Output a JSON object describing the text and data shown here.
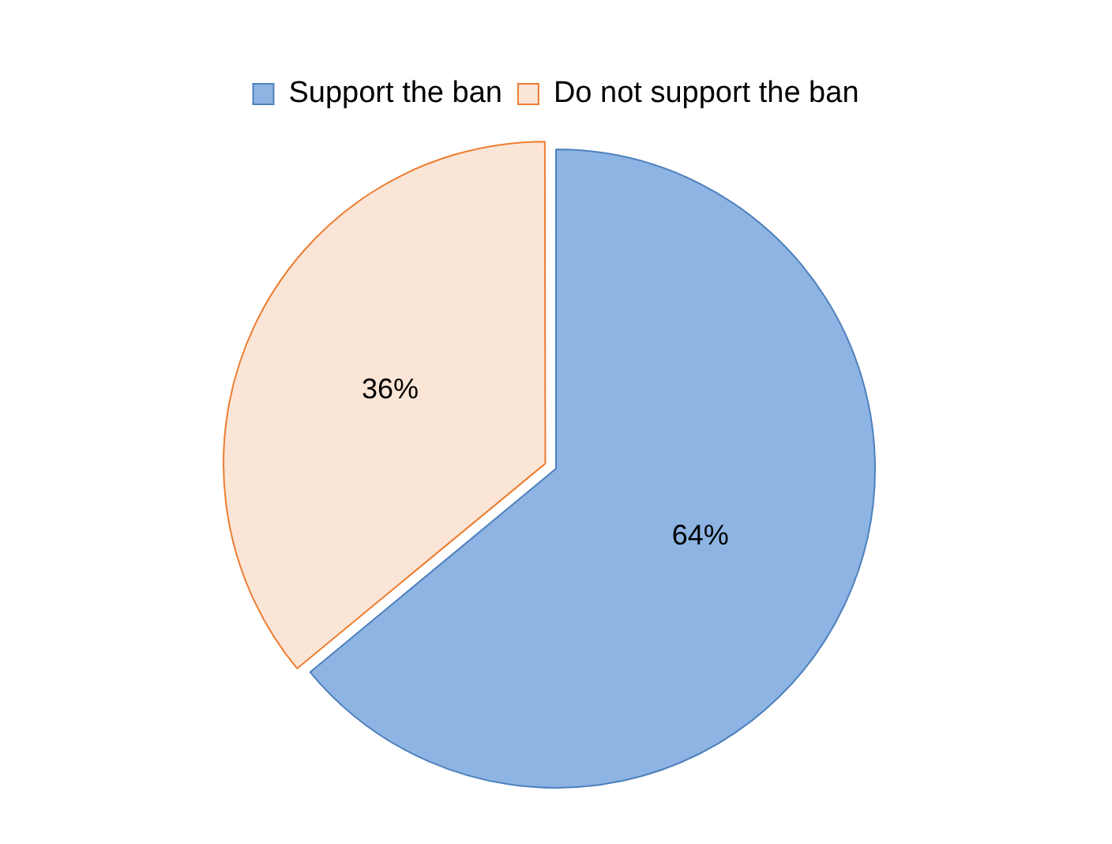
{
  "chart_data": {
    "type": "pie",
    "categories": [
      "Support the ban",
      "Do not support the ban"
    ],
    "values": [
      64,
      36
    ],
    "value_labels": [
      "64%",
      "36%"
    ],
    "colors": [
      "#8db4e2",
      "#fbe5d6"
    ],
    "legend": "top"
  }
}
